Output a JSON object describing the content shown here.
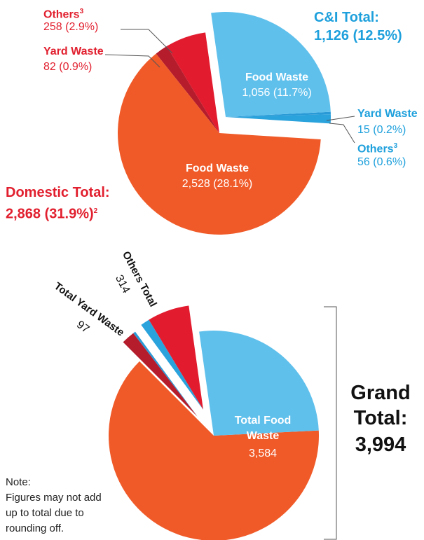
{
  "top": {
    "groups": [
      {
        "name": "Domestic Total:",
        "total_label": "2,868 (31.9%)",
        "footnote": "2",
        "color": "#e11f2e",
        "segments": [
          {
            "name": "Food Waste",
            "value": 2528,
            "value_label": "2,528 (28.1%)",
            "color": "#f05a28"
          },
          {
            "name": "Yard Waste",
            "value": 82,
            "value_label": "82 (0.9%)",
            "color": "#b51c2c"
          },
          {
            "name": "Others",
            "footnote": "3",
            "value": 258,
            "value_label": "258 (2.9%)",
            "color": "#e31b2f"
          }
        ]
      },
      {
        "name": "C&I Total:",
        "total_label": "1,126 (12.5%)",
        "color": "#1ea0dc",
        "segments": [
          {
            "name": "Food Waste",
            "value": 1056,
            "value_label": "1,056 (11.7%)",
            "color": "#5fc0ec"
          },
          {
            "name": "Yard Waste",
            "value": 15,
            "value_label": "15 (0.2%)",
            "color": "#2a9ad6"
          },
          {
            "name": "Others",
            "footnote": "3",
            "value": 56,
            "value_label": "56 (0.6%)",
            "color": "#2aa2dc"
          }
        ]
      }
    ]
  },
  "bottom": {
    "groups": [
      {
        "name": "Total Food Waste",
        "value": 3584,
        "value_label": "3,584"
      },
      {
        "name": "Total Yard Waste",
        "value": 97
      },
      {
        "name": "Others Total",
        "value": 314
      }
    ]
  },
  "grand_total": {
    "name": "Grand Total:",
    "value": 3994,
    "value_label": "3,994"
  },
  "note": {
    "title": "Note:",
    "text": "Figures may not add up to total due to rounding off."
  }
}
